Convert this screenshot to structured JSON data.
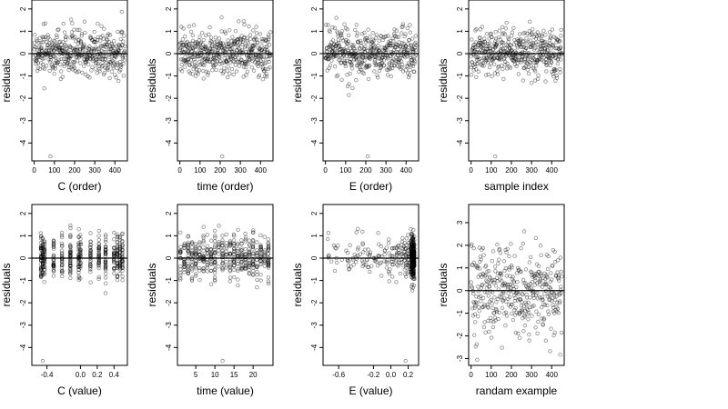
{
  "chart_data": [
    {
      "type": "scatter",
      "index": 0,
      "xlabel": "C (order)",
      "ylabel": "residuals",
      "xlim": [
        -12,
        462
      ],
      "ylim": [
        -4.8,
        2.4
      ],
      "xticks": [
        0,
        100,
        200,
        300,
        400
      ],
      "yticks": [
        -4,
        -3,
        -2,
        -1,
        0,
        1,
        2
      ],
      "x_distribution": "index",
      "n_points": 460,
      "outlier": {
        "x": 80,
        "y": -4.6
      },
      "reference_line_y": 0
    },
    {
      "type": "scatter",
      "index": 1,
      "xlabel": "time (order)",
      "ylabel": "residuals",
      "xlim": [
        -12,
        462
      ],
      "ylim": [
        -4.8,
        2.4
      ],
      "xticks": [
        0,
        100,
        200,
        300,
        400
      ],
      "yticks": [
        -4,
        -3,
        -2,
        -1,
        0,
        1,
        2
      ],
      "x_distribution": "index",
      "n_points": 460,
      "outlier": {
        "x": 210,
        "y": -4.6
      },
      "reference_line_y": 0
    },
    {
      "type": "scatter",
      "index": 2,
      "xlabel": "E (order)",
      "ylabel": "residuals",
      "xlim": [
        -12,
        462
      ],
      "ylim": [
        -4.8,
        2.4
      ],
      "xticks": [
        0,
        100,
        200,
        300,
        400
      ],
      "yticks": [
        -4,
        -3,
        -2,
        -1,
        0,
        1,
        2
      ],
      "x_distribution": "index",
      "n_points": 460,
      "outlier": {
        "x": 210,
        "y": -4.6
      },
      "reference_line_y": 0
    },
    {
      "type": "scatter",
      "index": 3,
      "xlabel": "sample index",
      "ylabel": "residuals",
      "xlim": [
        -12,
        462
      ],
      "ylim": [
        -4.8,
        2.4
      ],
      "xticks": [
        0,
        100,
        200,
        300,
        400
      ],
      "yticks": [
        -4,
        -3,
        -2,
        -1,
        0,
        1,
        2
      ],
      "x_distribution": "index",
      "n_points": 460,
      "outlier": {
        "x": 120,
        "y": -4.6
      },
      "reference_line_y": 0
    },
    {
      "type": "scatter",
      "index": 4,
      "xlabel": "C (value)",
      "ylabel": "residuals",
      "xlim": [
        -0.58,
        0.56
      ],
      "ylim": [
        -4.8,
        2.4
      ],
      "xticks": [
        -0.4,
        0.0,
        0.2,
        0.4
      ],
      "xtick_labels": [
        "-0.4",
        "0.0",
        "0.2",
        "0.4"
      ],
      "yticks": [
        -4,
        -3,
        -2,
        -1,
        0,
        1,
        2
      ],
      "x_distribution": "columns",
      "x_columns": [
        -0.47,
        -0.45,
        -0.43,
        -0.32,
        -0.22,
        -0.12,
        -0.02,
        0.0,
        0.12,
        0.22,
        0.3,
        0.4,
        0.44,
        0.47,
        0.5
      ],
      "n_points": 460,
      "outlier": {
        "x": -0.45,
        "y": -4.6
      },
      "reference_line_y": 0
    },
    {
      "type": "scatter",
      "index": 5,
      "xlabel": "time (value)",
      "ylabel": "residuals",
      "xlim": [
        0.2,
        25.2
      ],
      "ylim": [
        -4.8,
        2.4
      ],
      "xticks": [
        5,
        10,
        15,
        20
      ],
      "yticks": [
        -4,
        -3,
        -2,
        -1,
        0,
        1,
        2
      ],
      "x_distribution": "columns",
      "x_columns": [
        1,
        2,
        3,
        4,
        5,
        6,
        7,
        8,
        9,
        10,
        11,
        12,
        13,
        14,
        15,
        16,
        17,
        18,
        19,
        20,
        21,
        22,
        23,
        24
      ],
      "n_points": 460,
      "outlier": {
        "x": 12,
        "y": -4.6
      },
      "reference_line_y": 0
    },
    {
      "type": "scatter",
      "index": 6,
      "xlabel": "E (value)",
      "ylabel": "residuals",
      "xlim": [
        -0.78,
        0.32
      ],
      "ylim": [
        -4.8,
        2.4
      ],
      "xticks": [
        -0.6,
        -0.2,
        0.0,
        0.2
      ],
      "xtick_labels": [
        "-0.6",
        "-0.2",
        "0.0",
        "0.2"
      ],
      "yticks": [
        -4,
        -3,
        -2,
        -1,
        0,
        1,
        2
      ],
      "x_distribution": "skewed_right",
      "n_points": 460,
      "outlier": {
        "x": 0.17,
        "y": -4.6
      },
      "reference_line_y": 0
    },
    {
      "type": "scatter",
      "index": 7,
      "xlabel": "randam example",
      "ylabel": "residuals",
      "xlim": [
        -12,
        462
      ],
      "ylim": [
        -3.3,
        3.8
      ],
      "xticks": [
        0,
        100,
        200,
        300,
        400
      ],
      "yticks": [
        -3,
        -2,
        -1,
        0,
        1,
        2,
        3
      ],
      "x_distribution": "index",
      "n_points": 400,
      "reference_line_y": 0
    }
  ]
}
